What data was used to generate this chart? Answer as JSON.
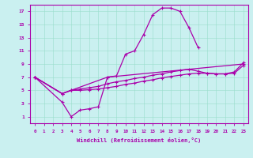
{
  "xlabel": "Windchill (Refroidissement éolien,°C)",
  "xlim": [
    -0.5,
    23.5
  ],
  "ylim": [
    0,
    18
  ],
  "xticks": [
    0,
    1,
    2,
    3,
    4,
    5,
    6,
    7,
    8,
    9,
    10,
    11,
    12,
    13,
    14,
    15,
    16,
    17,
    18,
    19,
    20,
    21,
    22,
    23
  ],
  "yticks": [
    1,
    3,
    5,
    7,
    9,
    11,
    13,
    15,
    17
  ],
  "bg_color": "#caf0f0",
  "line_color": "#aa00aa",
  "grid_color": "#99ddcc",
  "c1x": [
    0,
    3,
    4,
    5,
    6,
    7,
    8,
    9,
    10,
    11,
    12,
    13,
    14,
    15,
    16,
    17,
    18
  ],
  "c1y": [
    7.0,
    3.2,
    1.0,
    2.0,
    2.2,
    2.5,
    7.0,
    7.2,
    10.5,
    11.0,
    13.5,
    16.5,
    17.5,
    17.5,
    17.0,
    14.5,
    11.5
  ],
  "c2x": [
    0,
    3,
    4,
    5,
    6,
    7,
    8,
    9,
    10,
    11,
    12,
    13,
    14,
    15,
    16,
    17,
    18,
    19,
    20,
    21,
    22,
    23
  ],
  "c2y": [
    7.0,
    4.5,
    5.0,
    5.2,
    5.4,
    5.6,
    6.0,
    6.3,
    6.5,
    6.8,
    7.0,
    7.3,
    7.5,
    7.8,
    8.0,
    8.2,
    7.9,
    7.6,
    7.5,
    7.5,
    7.8,
    9.2
  ],
  "c3x": [
    0,
    3,
    4,
    5,
    6,
    7,
    8,
    9,
    10,
    11,
    12,
    13,
    14,
    15,
    16,
    17,
    18,
    19,
    20,
    21,
    22,
    23
  ],
  "c3y": [
    7.0,
    4.5,
    5.0,
    5.0,
    5.1,
    5.2,
    5.4,
    5.6,
    5.9,
    6.1,
    6.4,
    6.6,
    6.9,
    7.1,
    7.3,
    7.5,
    7.6,
    7.6,
    7.5,
    7.5,
    7.6,
    8.8
  ],
  "c4x": [
    0,
    3,
    4,
    8,
    23
  ],
  "c4y": [
    7.0,
    4.5,
    5.0,
    7.0,
    9.0
  ]
}
